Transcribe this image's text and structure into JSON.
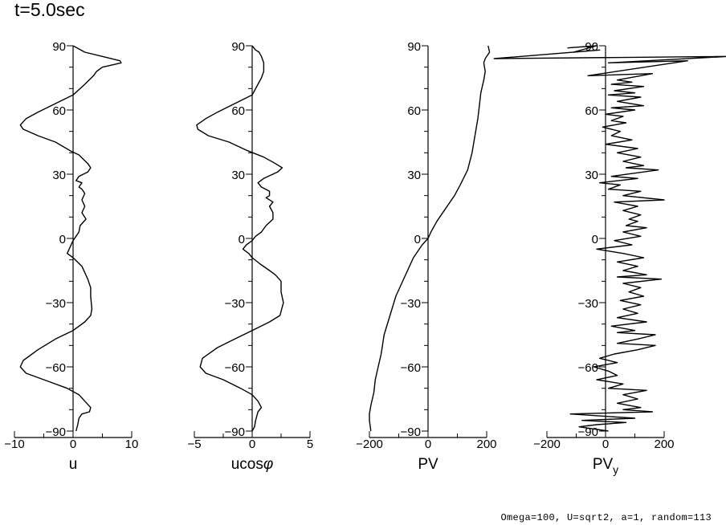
{
  "title": "t=5.0sec",
  "footnote": "Omega=100, U=sqrt2, a=1, random=113",
  "chart_data": [
    {
      "type": "line",
      "panel": "u",
      "xlabel": "u",
      "xlabel_sub": "",
      "xlim": [
        -10,
        10
      ],
      "xticks": [
        -10,
        0,
        10
      ],
      "xtick_labels": [
        "−10",
        "0",
        "10"
      ],
      "ylim": [
        -90,
        90
      ],
      "yticks": [
        -90,
        -60,
        -30,
        0,
        30,
        60,
        90
      ],
      "ytick_labels": [
        "−90",
        "−60",
        "−30",
        "0",
        "30",
        "60",
        "90"
      ],
      "series": [
        {
          "name": "u",
          "points": [
            [
              0,
              90
            ],
            [
              2,
              87
            ],
            [
              5,
              85
            ],
            [
              8,
              83
            ],
            [
              8.2,
              82
            ],
            [
              5,
              80
            ],
            [
              4,
              78
            ],
            [
              3.5,
              76
            ],
            [
              2,
              72
            ],
            [
              0,
              67
            ],
            [
              -3,
              63
            ],
            [
              -6,
              59
            ],
            [
              -8,
              56
            ],
            [
              -9,
              53
            ],
            [
              -8.5,
              51
            ],
            [
              -6,
              48
            ],
            [
              -3,
              45
            ],
            [
              -0.5,
              41
            ],
            [
              1,
              39
            ],
            [
              2.5,
              35
            ],
            [
              3,
              33
            ],
            [
              2.5,
              31
            ],
            [
              1,
              29
            ],
            [
              0.5,
              27
            ],
            [
              1.5,
              26
            ],
            [
              1,
              24
            ],
            [
              1.5,
              23
            ],
            [
              2,
              21
            ],
            [
              1.5,
              18
            ],
            [
              2,
              15
            ],
            [
              1.5,
              12
            ],
            [
              2.2,
              9
            ],
            [
              1.2,
              6
            ],
            [
              1,
              3
            ],
            [
              0.5,
              1
            ],
            [
              0,
              -1
            ],
            [
              -0.5,
              -4
            ],
            [
              -1,
              -7
            ],
            [
              0,
              -9
            ],
            [
              1.5,
              -13
            ],
            [
              2.5,
              -19
            ],
            [
              3,
              -23
            ],
            [
              3,
              -27
            ],
            [
              3.2,
              -33
            ],
            [
              3,
              -36
            ],
            [
              2,
              -39
            ],
            [
              0,
              -43
            ],
            [
              -3,
              -47
            ],
            [
              -6,
              -52
            ],
            [
              -8.5,
              -57
            ],
            [
              -9,
              -60
            ],
            [
              -8,
              -63
            ],
            [
              -5,
              -66
            ],
            [
              -1,
              -70
            ],
            [
              1,
              -73
            ],
            [
              2,
              -76
            ],
            [
              3,
              -79
            ],
            [
              2.8,
              -81
            ],
            [
              1.5,
              -82
            ],
            [
              1,
              -84
            ],
            [
              0.8,
              -87
            ],
            [
              0.5,
              -90
            ]
          ]
        }
      ]
    },
    {
      "type": "line",
      "panel": "ucosφ",
      "xlabel": "ucos",
      "xlabel_sub": "φ",
      "xlim": [
        -5,
        5
      ],
      "xticks": [
        -5,
        0,
        5
      ],
      "xtick_labels": [
        "−5",
        "0",
        "5"
      ],
      "ylim": [
        -90,
        90
      ],
      "yticks": [
        -90,
        -60,
        -30,
        0,
        30,
        60,
        90
      ],
      "ytick_labels": [
        "−90",
        "−60",
        "−30",
        "0",
        "30",
        "60",
        "90"
      ],
      "series": [
        {
          "name": "ucosφ",
          "points": [
            [
              0,
              90
            ],
            [
              0.3,
              88
            ],
            [
              0.6,
              87
            ],
            [
              0.8,
              85
            ],
            [
              1,
              82
            ],
            [
              1,
              78
            ],
            [
              0.8,
              75
            ],
            [
              0.5,
              72
            ],
            [
              0,
              67
            ],
            [
              -1.5,
              63
            ],
            [
              -3,
              59
            ],
            [
              -4,
              56
            ],
            [
              -4.8,
              53
            ],
            [
              -4.7,
              51
            ],
            [
              -3.8,
              48
            ],
            [
              -2,
              45
            ],
            [
              -0.4,
              41
            ],
            [
              1,
              38
            ],
            [
              2,
              35
            ],
            [
              2.6,
              33
            ],
            [
              2.2,
              31
            ],
            [
              1,
              28
            ],
            [
              0.5,
              26
            ],
            [
              0.8,
              24
            ],
            [
              1.5,
              22
            ],
            [
              1.5,
              20
            ],
            [
              1.2,
              19
            ],
            [
              1.8,
              17
            ],
            [
              1.5,
              15
            ],
            [
              1.8,
              12
            ],
            [
              1.8,
              9
            ],
            [
              1.2,
              6
            ],
            [
              0.8,
              3
            ],
            [
              0.3,
              1
            ],
            [
              0,
              -1
            ],
            [
              -0.5,
              -3
            ],
            [
              -0.8,
              -5
            ],
            [
              -0.3,
              -7
            ],
            [
              0,
              -9
            ],
            [
              0.7,
              -12
            ],
            [
              1.5,
              -15
            ],
            [
              2,
              -17
            ],
            [
              2.5,
              -20
            ],
            [
              2.5,
              -25
            ],
            [
              2.7,
              -30
            ],
            [
              2.4,
              -36
            ],
            [
              1.5,
              -39
            ],
            [
              0,
              -43
            ],
            [
              -1.5,
              -47
            ],
            [
              -3,
              -51
            ],
            [
              -4.3,
              -56
            ],
            [
              -4.5,
              -60
            ],
            [
              -4,
              -63
            ],
            [
              -2.5,
              -66
            ],
            [
              -1,
              -70
            ],
            [
              0,
              -73
            ],
            [
              0.5,
              -76
            ],
            [
              0.8,
              -79
            ],
            [
              0.5,
              -81
            ],
            [
              0.3,
              -85
            ],
            [
              0.2,
              -88
            ],
            [
              0,
              -90
            ]
          ]
        }
      ]
    },
    {
      "type": "line",
      "panel": "PV",
      "xlabel": "PV",
      "xlabel_sub": "",
      "xlim": [
        -200,
        200
      ],
      "xticks": [
        -200,
        0,
        200
      ],
      "xtick_labels": [
        "−200",
        "0",
        "200"
      ],
      "ylim": [
        -90,
        90
      ],
      "yticks": [
        -90,
        -60,
        -30,
        0,
        30,
        60,
        90
      ],
      "ytick_labels": [
        "−90",
        "−60",
        "−30",
        "0",
        "30",
        "60",
        "90"
      ],
      "series": [
        {
          "name": "PV",
          "points": [
            [
              -195,
              -90
            ],
            [
              -200,
              -85
            ],
            [
              -200,
              -82
            ],
            [
              -195,
              -78
            ],
            [
              -185,
              -72
            ],
            [
              -180,
              -66
            ],
            [
              -170,
              -60
            ],
            [
              -160,
              -54
            ],
            [
              -150,
              -45
            ],
            [
              -130,
              -36
            ],
            [
              -110,
              -27
            ],
            [
              -80,
              -18
            ],
            [
              -50,
              -9
            ],
            [
              -20,
              -3
            ],
            [
              0,
              0
            ],
            [
              10,
              3
            ],
            [
              30,
              8
            ],
            [
              60,
              14
            ],
            [
              90,
              20
            ],
            [
              110,
              25
            ],
            [
              135,
              32
            ],
            [
              150,
              40
            ],
            [
              160,
              48
            ],
            [
              170,
              56
            ],
            [
              175,
              62
            ],
            [
              180,
              68
            ],
            [
              190,
              74
            ],
            [
              195,
              78
            ],
            [
              190,
              82
            ],
            [
              195,
              84
            ],
            [
              210,
              87
            ],
            [
              205,
              90
            ]
          ]
        }
      ]
    },
    {
      "type": "line",
      "panel": "PVy",
      "xlabel": "PV",
      "xlabel_sub": "y",
      "xlim": [
        -200,
        200
      ],
      "xticks": [
        -200,
        0,
        200
      ],
      "xtick_labels": [
        "−200",
        "0",
        "200"
      ],
      "ylim": [
        -90,
        90
      ],
      "yticks": [
        -90,
        -60,
        -30,
        0,
        30,
        60,
        90
      ],
      "ytick_labels": [
        "−90",
        "−60",
        "−30",
        "0",
        "30",
        "60",
        "90"
      ],
      "series": [
        {
          "name": "PVy",
          "points": [
            [
              -130,
              89
            ],
            [
              -30,
              90
            ],
            [
              -110,
              87
            ],
            [
              -20,
              88
            ],
            [
              -380,
              84
            ],
            [
              420,
              85
            ],
            [
              10,
              82
            ],
            [
              280,
              83
            ],
            [
              -60,
              76
            ],
            [
              160,
              77
            ],
            [
              40,
              74
            ],
            [
              90,
              73
            ],
            [
              20,
              72
            ],
            [
              130,
              71
            ],
            [
              30,
              69
            ],
            [
              100,
              68
            ],
            [
              10,
              67
            ],
            [
              120,
              66
            ],
            [
              40,
              64
            ],
            [
              130,
              62
            ],
            [
              20,
              61
            ],
            [
              100,
              60
            ],
            [
              0,
              58
            ],
            [
              60,
              57
            ],
            [
              20,
              55
            ],
            [
              70,
              54
            ],
            [
              -10,
              52
            ],
            [
              50,
              50
            ],
            [
              20,
              48
            ],
            [
              90,
              46
            ],
            [
              0,
              44
            ],
            [
              110,
              42
            ],
            [
              40,
              40
            ],
            [
              120,
              38
            ],
            [
              60,
              36
            ],
            [
              130,
              34
            ],
            [
              70,
              33
            ],
            [
              180,
              32
            ],
            [
              20,
              29
            ],
            [
              110,
              28
            ],
            [
              -20,
              26
            ],
            [
              50,
              25
            ],
            [
              10,
              23
            ],
            [
              120,
              22
            ],
            [
              60,
              20
            ],
            [
              200,
              18
            ],
            [
              30,
              17
            ],
            [
              110,
              15
            ],
            [
              60,
              13
            ],
            [
              120,
              11
            ],
            [
              80,
              9
            ],
            [
              110,
              8
            ],
            [
              70,
              6
            ],
            [
              140,
              5
            ],
            [
              60,
              3
            ],
            [
              120,
              1
            ],
            [
              30,
              -1
            ],
            [
              90,
              -3
            ],
            [
              -30,
              -5
            ],
            [
              60,
              -7
            ],
            [
              130,
              -9
            ],
            [
              40,
              -11
            ],
            [
              110,
              -13
            ],
            [
              60,
              -15
            ],
            [
              140,
              -17
            ],
            [
              40,
              -18
            ],
            [
              190,
              -19
            ],
            [
              60,
              -21
            ],
            [
              120,
              -23
            ],
            [
              80,
              -25
            ],
            [
              130,
              -27
            ],
            [
              50,
              -29
            ],
            [
              120,
              -31
            ],
            [
              60,
              -33
            ],
            [
              110,
              -35
            ],
            [
              40,
              -37
            ],
            [
              140,
              -39
            ],
            [
              20,
              -41
            ],
            [
              100,
              -43
            ],
            [
              40,
              -44
            ],
            [
              170,
              -45
            ],
            [
              110,
              -47
            ],
            [
              40,
              -49
            ],
            [
              170,
              -50
            ],
            [
              110,
              -52
            ],
            [
              30,
              -54
            ],
            [
              -20,
              -56
            ],
            [
              40,
              -58
            ],
            [
              -40,
              -60
            ],
            [
              10,
              -62
            ],
            [
              40,
              -64
            ],
            [
              -30,
              -66
            ],
            [
              60,
              -68
            ],
            [
              10,
              -70
            ],
            [
              140,
              -71
            ],
            [
              60,
              -73
            ],
            [
              110,
              -75
            ],
            [
              40,
              -77
            ],
            [
              120,
              -79
            ],
            [
              60,
              -80
            ],
            [
              160,
              -81
            ],
            [
              -120,
              -82
            ],
            [
              100,
              -84
            ],
            [
              -80,
              -85
            ],
            [
              70,
              -86
            ],
            [
              -30,
              -87
            ],
            [
              -90,
              -88
            ],
            [
              10,
              -90
            ]
          ]
        }
      ]
    }
  ]
}
